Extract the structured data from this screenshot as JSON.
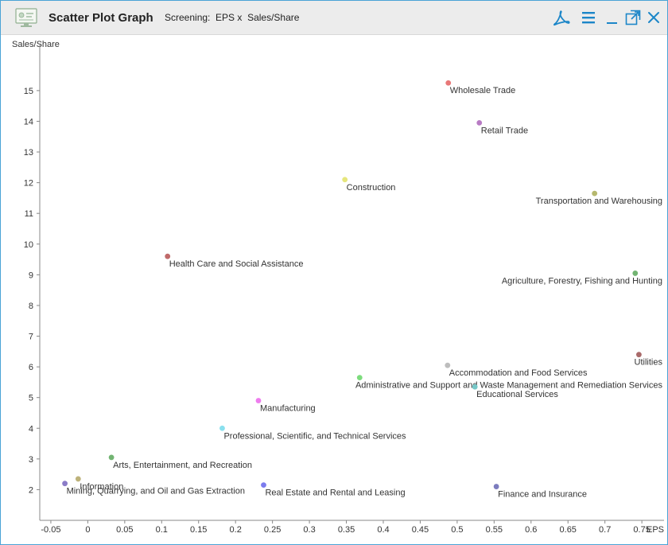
{
  "window": {
    "title": "Scatter Plot Graph",
    "subtitle_prefix": "Screening:",
    "subtitle_x": "EPS",
    "subtitle_sep": "x",
    "subtitle_y": "Sales/Share",
    "accent_color": "#1c86c8",
    "icons": [
      "chart-app-icon",
      "pdf-icon",
      "menu-icon",
      "minimize-icon",
      "maximize-icon",
      "close-icon"
    ]
  },
  "chart_data": {
    "type": "scatter",
    "title": "",
    "xlabel": "EPS",
    "ylabel": "Sales/Share",
    "xlim": [
      -0.065,
      0.78
    ],
    "ylim": [
      1,
      16.5
    ],
    "xticks": [
      "-0.05",
      "0",
      "0.05",
      "0.1",
      "0.15",
      "0.2",
      "0.25",
      "0.3",
      "0.35",
      "0.4",
      "0.45",
      "0.5",
      "0.55",
      "0.6",
      "0.65",
      "0.7",
      "0.75"
    ],
    "yticks": [
      "2",
      "3",
      "4",
      "5",
      "6",
      "7",
      "8",
      "9",
      "10",
      "11",
      "12",
      "13",
      "14",
      "15"
    ],
    "grid": false,
    "legend": "none",
    "points": [
      {
        "label": "Wholesale Trade",
        "x": 0.488,
        "y": 15.25,
        "color": "#e87878"
      },
      {
        "label": "Retail Trade",
        "x": 0.53,
        "y": 13.95,
        "color": "#b87bc4"
      },
      {
        "label": "Construction",
        "x": 0.348,
        "y": 12.1,
        "color": "#e6e67c"
      },
      {
        "label": "Transportation and Warehousing",
        "x": 0.686,
        "y": 11.65,
        "color": "#b6b86e"
      },
      {
        "label": "Health Care and Social Assistance",
        "x": 0.108,
        "y": 9.6,
        "color": "#c06a6a"
      },
      {
        "label": "Agriculture, Forestry, Fishing and Hunting",
        "x": 0.741,
        "y": 9.05,
        "color": "#72b472"
      },
      {
        "label": "Utilities",
        "x": 0.746,
        "y": 6.4,
        "color": "#a96a6a"
      },
      {
        "label": "Accommodation and Food Services",
        "x": 0.487,
        "y": 6.05,
        "color": "#bdbdbd"
      },
      {
        "label": "Administrative and Support and Waste Management and Remediation Services",
        "x": 0.368,
        "y": 5.65,
        "color": "#7ddc7d"
      },
      {
        "label": "Educational Services",
        "x": 0.524,
        "y": 5.35,
        "color": "#77c8c8"
      },
      {
        "label": "Manufacturing",
        "x": 0.231,
        "y": 4.9,
        "color": "#ee7cee"
      },
      {
        "label": "Professional, Scientific, and Technical Services",
        "x": 0.182,
        "y": 4.0,
        "color": "#8ae0ee"
      },
      {
        "label": "Arts, Entertainment, and Recreation",
        "x": 0.032,
        "y": 3.05,
        "color": "#72b472"
      },
      {
        "label": "Information",
        "x": -0.013,
        "y": 2.35,
        "color": "#bdb27a"
      },
      {
        "label": "Mining, Quarrying, and Oil and Gas Extraction",
        "x": -0.031,
        "y": 2.2,
        "color": "#8b7cc8"
      },
      {
        "label": "Real Estate and Rental and Leasing",
        "x": 0.238,
        "y": 2.15,
        "color": "#7c7cee"
      },
      {
        "label": "Finance and Insurance",
        "x": 0.553,
        "y": 2.1,
        "color": "#7c7cbe"
      }
    ]
  }
}
